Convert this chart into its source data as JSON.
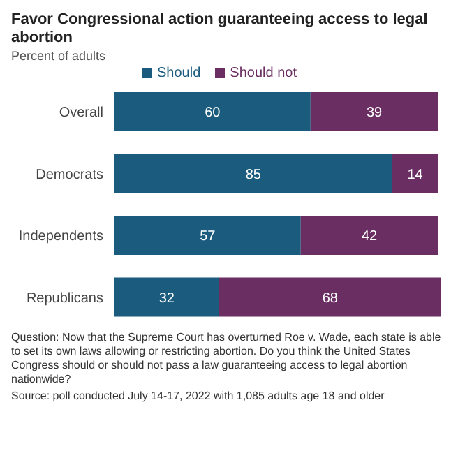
{
  "chart_data": {
    "type": "bar",
    "orientation": "horizontal",
    "stacked": true,
    "title": "Favor Congressional action guaranteeing access to legal abortion",
    "subtitle": "Percent of adults",
    "categories": [
      "Overall",
      "Democrats",
      "Independents",
      "Republicans"
    ],
    "series": [
      {
        "name": "Should",
        "color": "#1a5b7e",
        "values": [
          60,
          85,
          57,
          32
        ]
      },
      {
        "name": "Should not",
        "color": "#6a2e62",
        "values": [
          39,
          14,
          42,
          68
        ]
      }
    ],
    "data_labels": true,
    "legend": "top",
    "grid": false,
    "annotations": [
      "Question: Now that the Supreme Court has overturned Roe v. Wade, each state is able to set its own laws allowing or restricting abortion. Do you think the United States Congress should or should not pass a law guaranteeing access to legal abortion nationwide?",
      "Source: poll conducted July 14-17, 2022 with 1,085 adults age 18 and older"
    ]
  }
}
